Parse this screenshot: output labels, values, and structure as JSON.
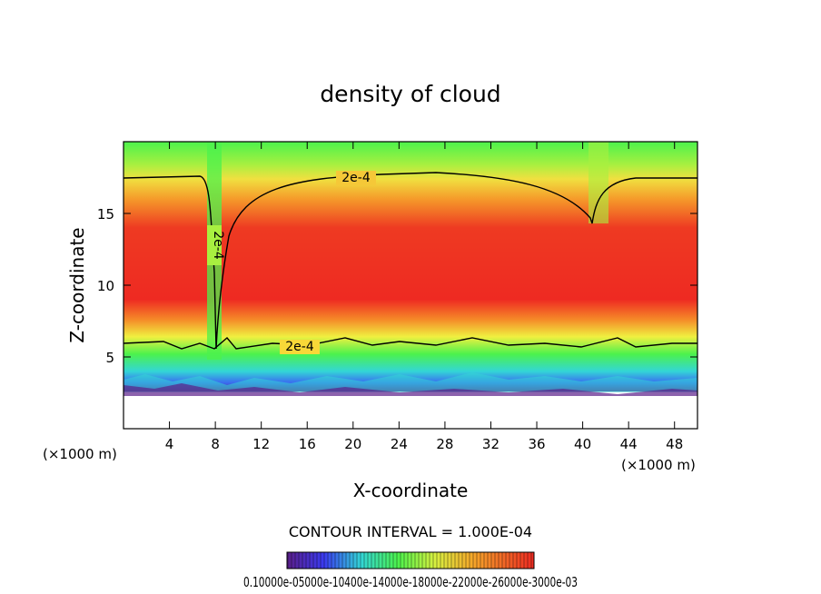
{
  "chart_data": {
    "type": "heatmap",
    "title": "density of cloud",
    "xlabel": "X-coordinate",
    "ylabel": "Z-coordinate",
    "x_unit": "(×1000 m)",
    "z_unit": "(×1000 m)",
    "xlim": [
      0,
      50
    ],
    "ylim": [
      0,
      20
    ],
    "x_ticks": [
      4,
      8,
      12,
      16,
      20,
      24,
      28,
      32,
      36,
      40,
      44,
      48
    ],
    "y_ticks": [
      5,
      10,
      15
    ],
    "contour_interval_text": "CONTOUR INTERVAL = 1.000E-04",
    "contour_level": 0.0002,
    "contour_labels": [
      "2e-4",
      "2e-4",
      "2e-4"
    ],
    "colorbar": {
      "min": 0.0001,
      "max": 0.0003,
      "tick_text": "0.10000e-05000e-10400e-14000e-18000e-22000e-26000e-3000e-03"
    },
    "field_description_regions": {
      "top_layer_z_range": [
        17.5,
        20
      ],
      "core_z_range": [
        6,
        17.5
      ],
      "bottom_layer_z_range": [
        2.7,
        6
      ],
      "empty_below_z": 2.7
    }
  },
  "colors": {
    "low": "#5b1f8a",
    "blue": "#3a6cf0",
    "cyan": "#33d6d6",
    "green": "#4cf24c",
    "yellow": "#f0f040",
    "orange": "#f59a2a",
    "red": "#ee2a22"
  }
}
